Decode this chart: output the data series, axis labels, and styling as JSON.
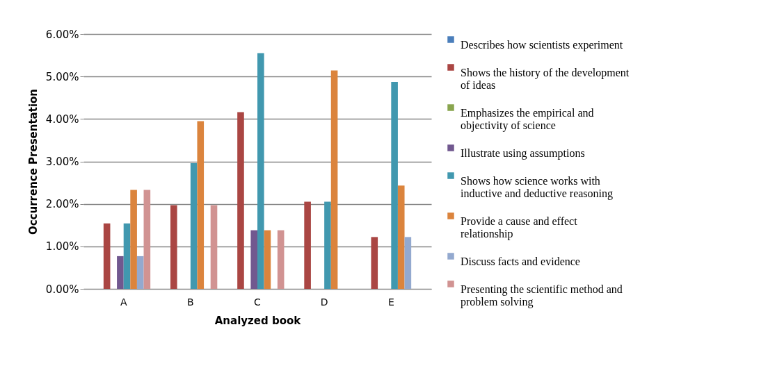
{
  "chart_data": {
    "type": "bar",
    "xlabel": "Analyzed book",
    "ylabel": "Occurrence Presentation",
    "categories": [
      "A",
      "B",
      "C",
      "D",
      "E"
    ],
    "ylim": [
      0,
      6
    ],
    "yticks": [
      {
        "value": 0,
        "label": "0.00%"
      },
      {
        "value": 1,
        "label": "1.00%"
      },
      {
        "value": 2,
        "label": "2.00%"
      },
      {
        "value": 3,
        "label": "3.00%"
      },
      {
        "value": 4,
        "label": "4.00%"
      },
      {
        "value": 5,
        "label": "5.00%"
      },
      {
        "value": 6,
        "label": "6.00%"
      }
    ],
    "grid": "y",
    "legend": "right",
    "series": [
      {
        "name": "Describes how scientists experiment",
        "color": "#4a7ebb",
        "values": [
          0,
          0,
          0,
          0,
          0
        ]
      },
      {
        "name": "Shows the history of the development of ideas",
        "color": "#aa4643",
        "values": [
          1.54,
          1.97,
          4.16,
          2.05,
          1.22
        ]
      },
      {
        "name": "Emphasizes the empirical and objectivity of science",
        "color": "#89a54e",
        "values": [
          0,
          0,
          0,
          0,
          0
        ]
      },
      {
        "name": "Illustrate using assumptions",
        "color": "#71588f",
        "values": [
          0.77,
          0,
          1.38,
          0,
          0
        ]
      },
      {
        "name": "Shows how science works with inductive and deductive reasoning",
        "color": "#4198af",
        "values": [
          1.54,
          2.96,
          5.55,
          2.05,
          4.87
        ]
      },
      {
        "name": "Provide a cause and effect relationship",
        "color": "#db843d",
        "values": [
          2.33,
          3.95,
          1.38,
          5.14,
          2.43
        ]
      },
      {
        "name": "Discuss facts and evidence",
        "color": "#93a9cf",
        "values": [
          0.77,
          0,
          0,
          0,
          1.22
        ]
      },
      {
        "name": "Presenting the scientific method and problem solving",
        "color": "#d19392",
        "values": [
          2.33,
          1.97,
          1.38,
          0,
          0
        ]
      }
    ]
  }
}
